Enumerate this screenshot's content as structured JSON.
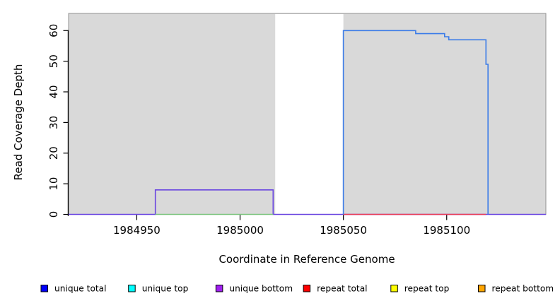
{
  "chart_data": {
    "type": "line",
    "title": "",
    "xlabel": "Coordinate in Reference Genome",
    "ylabel": "Read Coverage Depth",
    "xlim": [
      1984917,
      1985148
    ],
    "ylim": [
      0,
      65.6
    ],
    "x_ticks": [
      1984950,
      1985000,
      1985050,
      1985100
    ],
    "y_ticks": [
      0,
      10,
      20,
      30,
      40,
      50,
      60
    ],
    "grid": "off",
    "panel_bg": "#d9d9d9",
    "panel_border": "#919191",
    "no_data_region": {
      "from": 1985017,
      "to": 1985050,
      "color": "#ffffff"
    },
    "series": [
      {
        "name": "unique bottom",
        "color": "#6a46e0",
        "points": [
          [
            1984917,
            0
          ],
          [
            1984959,
            0
          ],
          [
            1984959,
            8
          ],
          [
            1985016,
            8
          ],
          [
            1985016,
            0
          ],
          [
            1985148,
            0
          ]
        ]
      },
      {
        "name": "zero baseline segment",
        "color": "#7cc47e",
        "points": [
          [
            1984959,
            0
          ],
          [
            1985016,
            0
          ]
        ]
      },
      {
        "name": "repeat total",
        "color": "#e83e5a",
        "points": [
          [
            1985050,
            0
          ],
          [
            1985119,
            0
          ]
        ]
      },
      {
        "name": "unique total",
        "color": "#3b7ce8",
        "points": [
          [
            1985050,
            0
          ],
          [
            1985050,
            60
          ],
          [
            1985085,
            60
          ],
          [
            1985085,
            59
          ],
          [
            1985099,
            59
          ],
          [
            1985099,
            58
          ],
          [
            1985101,
            58
          ],
          [
            1985101,
            57
          ],
          [
            1985119,
            57
          ],
          [
            1985119,
            49
          ],
          [
            1985120,
            49
          ],
          [
            1985120,
            0
          ]
        ]
      }
    ],
    "legend": {
      "position": "bottom",
      "entries": [
        {
          "label": "unique total",
          "color": "#0000ff"
        },
        {
          "label": "unique top",
          "color": "#00ffff"
        },
        {
          "label": "unique bottom",
          "color": "#a020f0"
        },
        {
          "label": "repeat total",
          "color": "#ff0000"
        },
        {
          "label": "repeat top",
          "color": "#ffff00"
        },
        {
          "label": "repeat bottom",
          "color": "#ffa500"
        }
      ]
    }
  }
}
